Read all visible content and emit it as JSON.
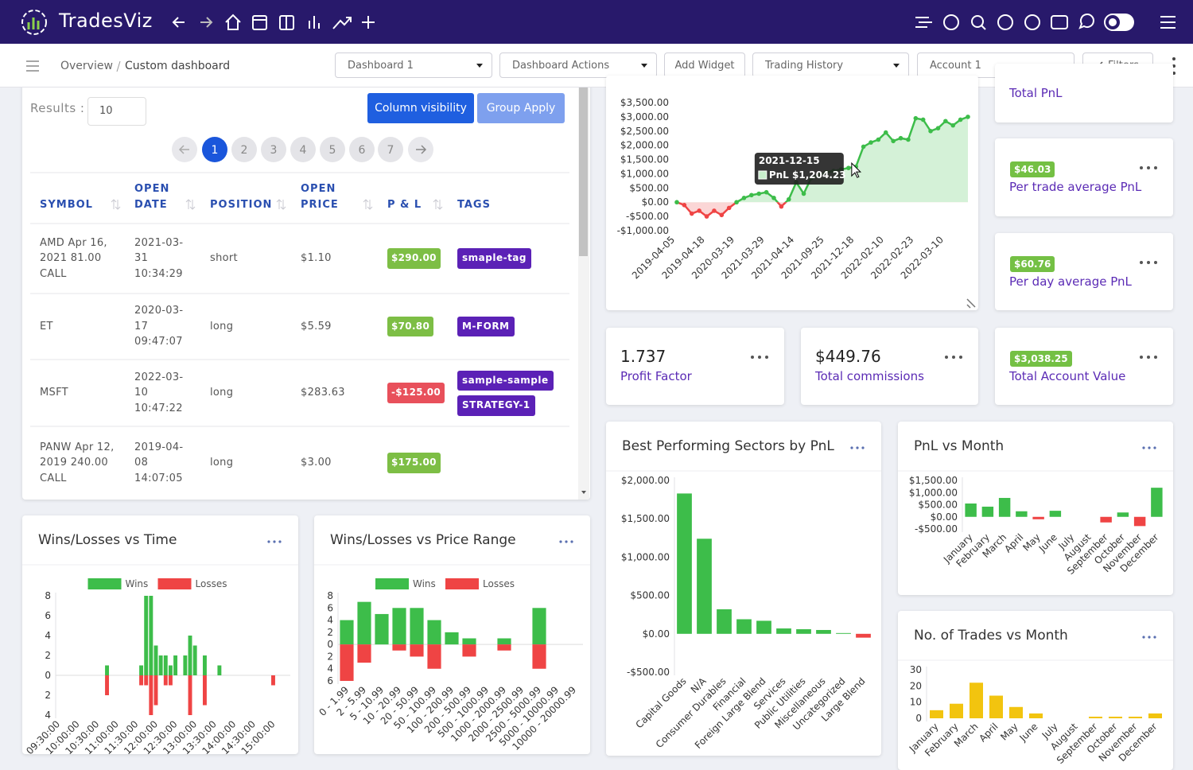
{
  "header": {
    "brand": "TradesViz"
  },
  "toolbar": {
    "breadcrumb": [
      "Overview",
      "Custom dashboard"
    ],
    "controls": [
      {
        "text": "Dashboard 1",
        "dropdown": true
      },
      {
        "text": "Dashboard Actions",
        "dropdown": true
      },
      {
        "text": "Add Widget",
        "dropdown": false
      },
      {
        "text": "Trading History",
        "dropdown": true
      },
      {
        "text": "Account 1",
        "dropdown": true
      },
      {
        "text": "Filters",
        "dropdown": false,
        "back_chevron": true
      }
    ]
  },
  "table": {
    "results_label": "Results :",
    "results_value": "10",
    "buttons": [
      "Column visibility",
      "Group Apply"
    ],
    "pages": [
      1,
      2,
      3,
      4,
      5,
      6,
      7
    ],
    "active_page": 1,
    "columns": [
      "SYMBOL",
      "OPEN DATE",
      "POSITION",
      "OPEN PRICE",
      "P & L",
      "TAGS"
    ],
    "rows": [
      [
        "AMD Apr 16, 2021 81.00 CALL",
        "2021-03-31 10:34:29",
        "short",
        "$1.10",
        "$290.00",
        [
          "smaple-tag"
        ]
      ],
      [
        "ET",
        "2020-03-17 09:47:07",
        "long",
        "$5.59",
        "$70.80",
        [
          "M-FORM"
        ]
      ],
      [
        "MSFT",
        "2022-03-10 10:47:22",
        "long",
        "$283.63",
        "-$125.00",
        [
          "sample-sample",
          "STRATEGY-1"
        ]
      ],
      [
        "PANW Apr 12, 2019 240.00 CALL",
        "2019-04-08 14:07:05",
        "long",
        "$3.00",
        "$175.00",
        []
      ]
    ]
  },
  "stats": [
    {
      "label": "Total PnL"
    },
    {
      "value": "$46.03",
      "label": "Per trade average PnL",
      "badge": true
    },
    {
      "value": "$60.76",
      "label": "Per day average PnL",
      "badge": true
    },
    {
      "value": "1.737",
      "label": "Profit Factor",
      "badge": false
    },
    {
      "value": "$449.76",
      "label": "Total commissions",
      "badge": false
    },
    {
      "value": "$3,038.25",
      "label": "Total Account Value",
      "badge": true
    }
  ],
  "pnl_chart": {
    "type": "line",
    "categories": [
      "2019-04-05",
      null,
      null,
      null,
      "2019-04-18",
      null,
      null,
      null,
      "2020-03-19",
      null,
      null,
      null,
      "2021-03-29",
      null,
      null,
      null,
      "2021-04-14",
      null,
      null,
      null,
      "2021-09-25",
      null,
      null,
      null,
      "2021-12-18",
      null,
      null,
      null,
      "2022-02-10",
      null,
      null,
      null,
      "2022-02-23",
      null,
      null,
      null,
      "2022-03-10",
      null,
      null,
      null
    ],
    "values": [
      0,
      -100,
      -400,
      -300,
      -500,
      -300,
      -450,
      -200,
      0,
      150,
      250,
      300,
      350,
      150,
      -150,
      100,
      700,
      300,
      850,
      950,
      1050,
      1100,
      1150,
      1204.23,
      1250,
      1950,
      2100,
      2200,
      2450,
      2150,
      2250,
      2200,
      2950,
      2900,
      2500,
      2600,
      2850,
      2700,
      2900,
      3000
    ],
    "positive_color": "#3dbd4a",
    "negative_color": "#ef4444",
    "ylim": [
      -1000,
      3500
    ],
    "yticks": [
      {
        "value": 3500,
        "label": "$3,500.00"
      },
      {
        "value": 3000,
        "label": "$3,000.00"
      },
      {
        "value": 2500,
        "label": "$2,500.00"
      },
      {
        "value": 2000,
        "label": "$2,000.00"
      },
      {
        "value": 1500,
        "label": "$1,500.00"
      },
      {
        "value": 1000,
        "label": "$1,000.00"
      },
      {
        "value": 500,
        "label": "$500.00"
      },
      {
        "value": 0,
        "label": "$0.00"
      },
      {
        "value": -500,
        "label": "-$500.00"
      },
      {
        "value": -1000,
        "label": "-$1,000.00"
      }
    ],
    "tooltip": {
      "index": 23,
      "date": "2021-12-15",
      "label": "PnL $1,204.23"
    }
  },
  "charts": [
    {
      "type": "bar",
      "title": "Wins/Losses vs Time",
      "legend": true,
      "grid": false,
      "zero_line": true,
      "categories": [
        "09:30:00",
        null,
        null,
        null,
        "10:00:00",
        null,
        null,
        null,
        "10:30:00",
        null,
        null,
        null,
        "11:00:00",
        null,
        null,
        null,
        "11:30:00",
        null,
        null,
        null,
        "12:00:00",
        null,
        null,
        null,
        "12:30:00",
        null,
        null,
        null,
        "13:00:00",
        null,
        null,
        null,
        "13:30:00",
        null,
        null,
        null,
        "14:00:00",
        null,
        null,
        null,
        "14:30:00",
        null,
        null,
        null,
        "15:00:00",
        null,
        null,
        null
      ],
      "series": [
        {
          "name": "Wins",
          "color": "#3dbd4a",
          "values": [
            0,
            0,
            0,
            0,
            0,
            0,
            0,
            0,
            0,
            0,
            1,
            0,
            0,
            0,
            0,
            0,
            0,
            1,
            8,
            8,
            3,
            2,
            2,
            1,
            2,
            0,
            2,
            4,
            3,
            0,
            2,
            0,
            0,
            1,
            0,
            0,
            0,
            0,
            0,
            0,
            0,
            0,
            0,
            0,
            0,
            0,
            0,
            0
          ]
        },
        {
          "name": "Losses",
          "color": "#ef4444",
          "values": [
            0,
            0,
            0,
            0,
            0,
            0,
            0,
            0,
            0,
            0,
            -2,
            0,
            0,
            0,
            0,
            0,
            0,
            -1,
            -1,
            -4,
            -3,
            0,
            -1,
            -1,
            0,
            0,
            0,
            -4,
            0,
            0,
            -3,
            0,
            0,
            0,
            0,
            0,
            0,
            0,
            0,
            0,
            0,
            0,
            0,
            0,
            -1,
            0,
            0,
            0
          ]
        }
      ],
      "ylim": [
        -4,
        8
      ],
      "yticks": [
        8,
        6,
        4,
        2,
        0,
        {
          "value": -2,
          "label": "2"
        },
        {
          "value": -4,
          "label": "4"
        }
      ]
    },
    {
      "type": "bar",
      "title": "Wins/Losses vs Price Range",
      "legend": true,
      "grid": false,
      "zero_line": true,
      "categories": [
        "0 - 1.99",
        "2 - 5.99",
        "5 - 10.99",
        "10 - 20.99",
        "20 - 50.99",
        "50 - 100.99",
        "100 - 200.99",
        "200 - 500.99",
        "500 - 1000.99",
        "1000 - 2000.99",
        "2000 - 2500.99",
        "2500 - 5000.99",
        "5000 - 10000.99",
        "10000 - 20000.99"
      ],
      "series": [
        {
          "name": "Wins",
          "color": "#3dbd4a",
          "values": [
            4,
            7,
            5,
            6,
            6,
            4,
            2,
            1,
            0,
            1,
            0,
            6,
            0,
            0
          ]
        },
        {
          "name": "Losses",
          "color": "#ef4444",
          "values": [
            -6,
            -3,
            0,
            -1,
            -2,
            -4,
            0,
            -2,
            0,
            -1,
            0,
            -4,
            0,
            0
          ]
        }
      ],
      "ylim": [
        -6,
        8
      ],
      "yticks": [
        8,
        6,
        4,
        2,
        0,
        {
          "value": -2,
          "label": "2"
        },
        {
          "value": -4,
          "label": "4"
        },
        {
          "value": -6,
          "label": "6"
        }
      ]
    },
    {
      "type": "bar",
      "title": "Best Performing Sectors by PnL",
      "legend": false,
      "grid": false,
      "zero_line": false,
      "categories": [
        "Capital Goods",
        "N/A",
        "Consumer Durables",
        "Financial",
        "Foreign Large Blend",
        "Services",
        "Public Utilities",
        "Miscellaneous",
        "Uncategorized",
        "Large Blend"
      ],
      "values": [
        1830,
        1240,
        320,
        190,
        170,
        70,
        60,
        50,
        10,
        -50
      ],
      "color": "#3dbd4a",
      "negative_color": "#ef4444",
      "ylim": [
        -500,
        2000
      ],
      "yticks": [
        {
          "value": 2000,
          "label": "$2,000.00"
        },
        {
          "value": 1500,
          "label": "$1,500.00"
        },
        {
          "value": 1000,
          "label": "$1,000.00"
        },
        {
          "value": 500,
          "label": "$500.00"
        },
        {
          "value": 0,
          "label": "$0.00"
        },
        {
          "value": -500,
          "label": "-$500.00"
        }
      ]
    },
    {
      "type": "bar",
      "title": "PnL vs Month",
      "legend": false,
      "grid": false,
      "zero_line": false,
      "categories": [
        "January",
        "February",
        "March",
        "April",
        "May",
        "June",
        "July",
        "August",
        "September",
        "October",
        "November",
        "December"
      ],
      "values": [
        550,
        420,
        780,
        230,
        -100,
        250,
        0,
        0,
        -230,
        180,
        -380,
        1200
      ],
      "color": "#3dbd4a",
      "negative_color": "#ef4444",
      "ylim": [
        -500,
        1500
      ],
      "yticks": [
        {
          "value": 1500,
          "label": "$1,500.00"
        },
        {
          "value": 1000,
          "label": "$1,000.00"
        },
        {
          "value": 500,
          "label": "$500.00"
        },
        {
          "value": 0,
          "label": "$0.00"
        },
        {
          "value": -500,
          "label": "-$500.00"
        }
      ]
    },
    {
      "type": "bar",
      "title": "No. of Trades vs Month",
      "legend": false,
      "grid": false,
      "zero_line": false,
      "categories": [
        "January",
        "February",
        "March",
        "April",
        "May",
        "June",
        "July",
        "August",
        "September",
        "October",
        "November",
        "December"
      ],
      "values": [
        5,
        9,
        22,
        14,
        7,
        3,
        0,
        0,
        1,
        1,
        1,
        3
      ],
      "color": "#f2c40f",
      "ylim": [
        0,
        30
      ],
      "yticks": [
        30,
        20,
        10,
        0
      ]
    }
  ]
}
